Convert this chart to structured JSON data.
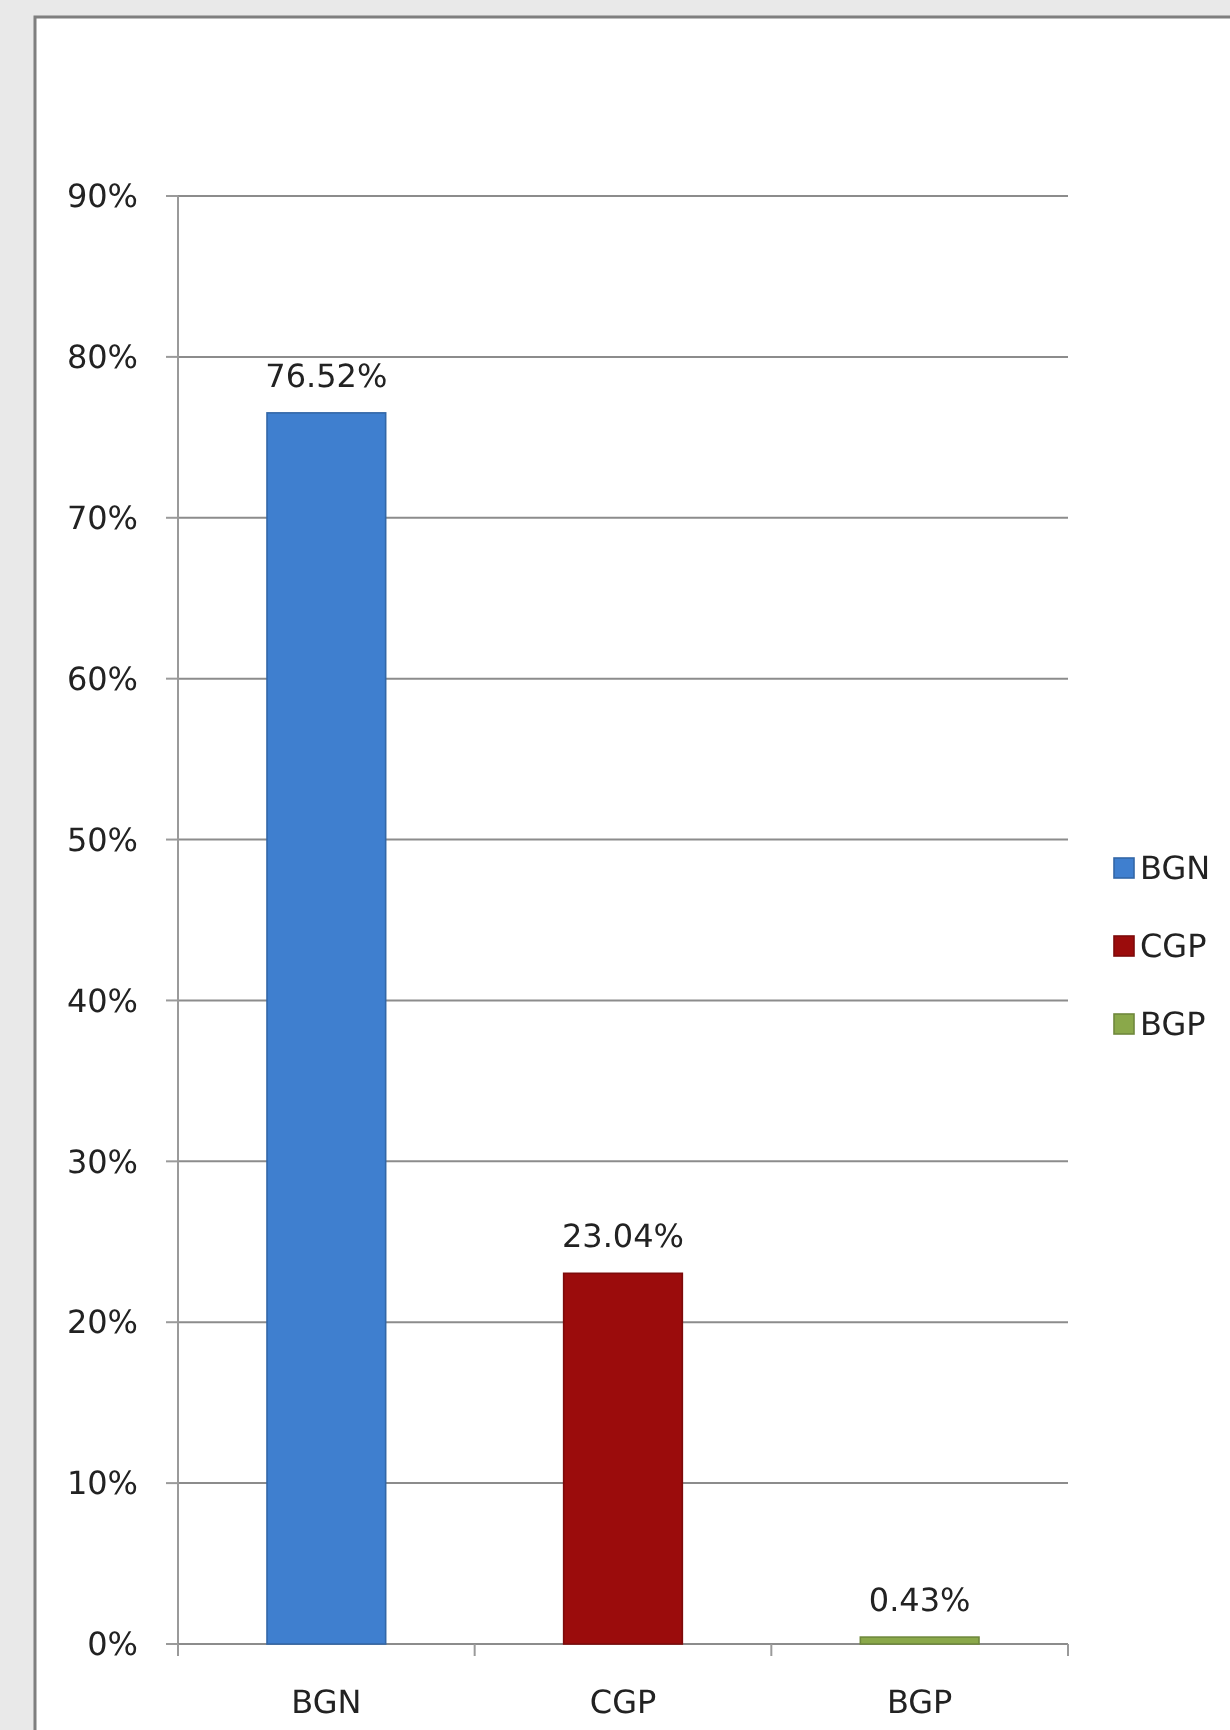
{
  "chart_data": {
    "type": "bar",
    "categories": [
      "BGN",
      "CGP",
      "BGP"
    ],
    "series": [
      {
        "name": "BGN",
        "color": "#3f7fcf",
        "values": [
          76.52,
          null,
          null
        ],
        "value_labels": [
          "76.52%",
          null,
          null
        ]
      },
      {
        "name": "CGP",
        "color": "#9b0c0c",
        "values": [
          null,
          23.04,
          null
        ],
        "value_labels": [
          null,
          "23.04%",
          null
        ]
      },
      {
        "name": "BGP",
        "color": "#8aa84a",
        "values": [
          null,
          null,
          0.43
        ],
        "value_labels": [
          null,
          null,
          "0.43%"
        ]
      }
    ],
    "ylim": [
      0,
      90
    ],
    "yticks": [
      {
        "value": 0,
        "label": "0%"
      },
      {
        "value": 10,
        "label": "10%"
      },
      {
        "value": 20,
        "label": "20%"
      },
      {
        "value": 30,
        "label": "30%"
      },
      {
        "value": 40,
        "label": "40%"
      },
      {
        "value": 50,
        "label": "50%"
      },
      {
        "value": 60,
        "label": "60%"
      },
      {
        "value": 70,
        "label": "70%"
      },
      {
        "value": 80,
        "label": "80%"
      },
      {
        "value": 90,
        "label": "90%"
      }
    ],
    "grid": "y",
    "legend": "right"
  }
}
